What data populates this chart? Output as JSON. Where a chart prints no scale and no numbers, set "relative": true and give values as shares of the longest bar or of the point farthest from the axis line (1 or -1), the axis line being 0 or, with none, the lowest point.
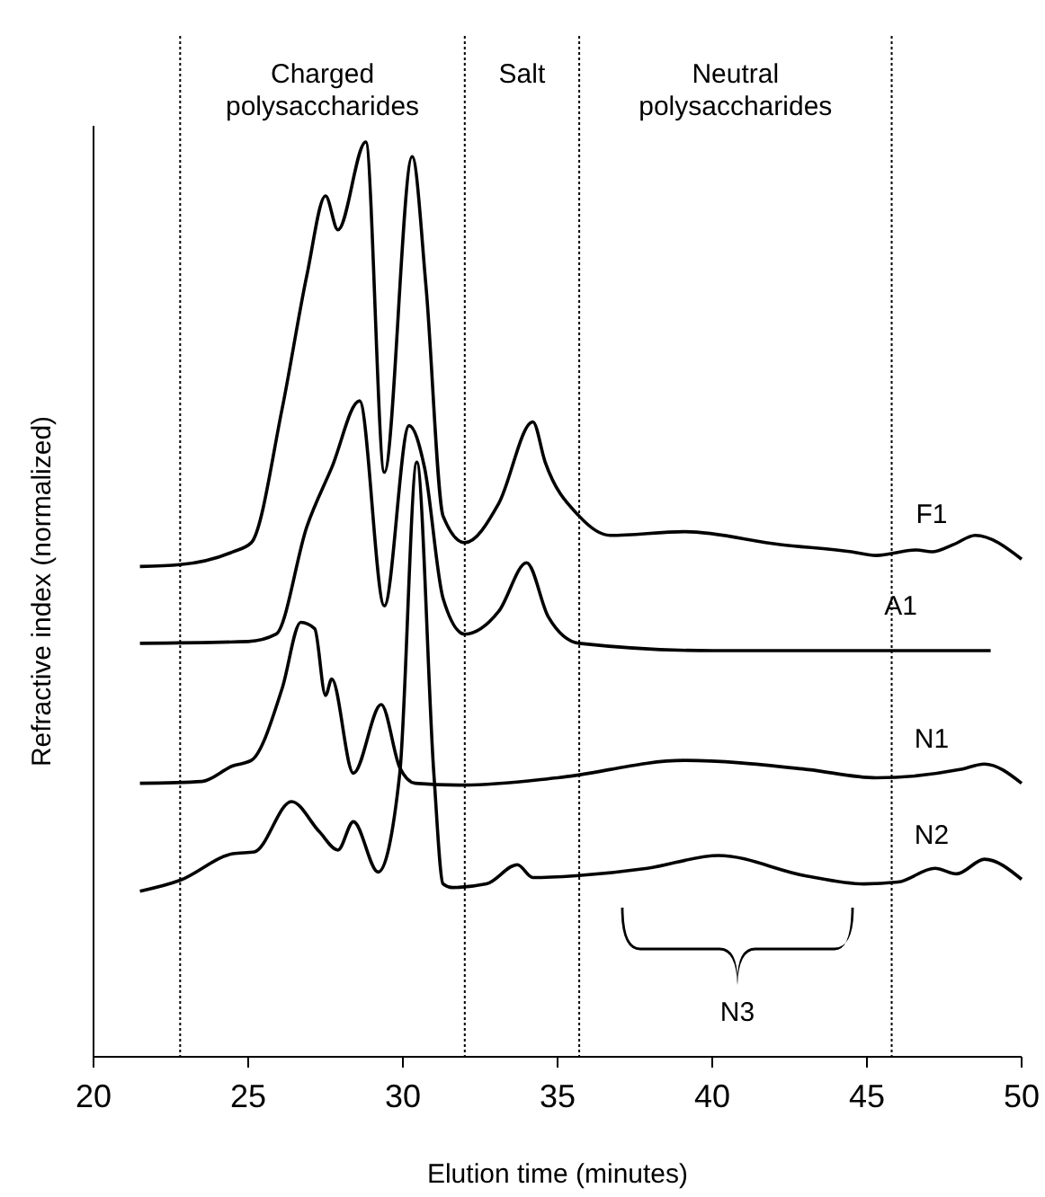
{
  "chart_data": {
    "type": "line",
    "relative": true,
    "xlabel": "Elution time (minutes)",
    "ylabel": "Refractive index (normalized)",
    "xlim": [
      20,
      50
    ],
    "xticks": [
      20,
      25,
      30,
      35,
      40,
      45,
      50
    ],
    "grid": false,
    "marker": "none",
    "line_style": "solid",
    "series": [
      {
        "name": "F1",
        "color": "#000000",
        "x": [
          21.5,
          22.8,
          24.5,
          25.1,
          26.1,
          26.9,
          27.5,
          27.9,
          28.8,
          29.4,
          30.3,
          30.75,
          31.3,
          32.0,
          33.1,
          34.2,
          34.6,
          35.7,
          36.7,
          39.1,
          42.2,
          44.5,
          45.3,
          46.6,
          47.1,
          47.8,
          48.5,
          50
        ],
        "values": [
          0.536,
          0.538,
          0.552,
          0.562,
          0.709,
          0.855,
          0.941,
          0.904,
          1.0,
          0.639,
          0.984,
          0.841,
          0.591,
          0.562,
          0.605,
          0.694,
          0.65,
          0.591,
          0.57,
          0.574,
          0.56,
          0.552,
          0.548,
          0.554,
          0.552,
          0.56,
          0.57,
          0.544
        ]
      },
      {
        "name": "A1",
        "color": "#000000",
        "x": [
          21.5,
          25.0,
          25.9,
          26.9,
          27.7,
          28.6,
          29.4,
          30.2,
          30.7,
          31.3,
          32.0,
          33.1,
          34.0,
          34.7,
          35.7,
          40,
          45,
          49
        ],
        "values": [
          0.452,
          0.454,
          0.462,
          0.58,
          0.644,
          0.717,
          0.493,
          0.69,
          0.644,
          0.501,
          0.462,
          0.487,
          0.54,
          0.481,
          0.452,
          0.444,
          0.444,
          0.444
        ]
      },
      {
        "name": "N1",
        "color": "#000000",
        "x": [
          21.5,
          23.5,
          24.5,
          25.1,
          26.1,
          26.7,
          27.15,
          27.5,
          27.7,
          28.4,
          29.3,
          29.9,
          30.4,
          32,
          35,
          39.1,
          43.1,
          45.3,
          48.0,
          48.8,
          50
        ],
        "values": [
          0.299,
          0.301,
          0.318,
          0.324,
          0.403,
          0.475,
          0.468,
          0.395,
          0.413,
          0.31,
          0.385,
          0.316,
          0.299,
          0.297,
          0.305,
          0.324,
          0.314,
          0.305,
          0.314,
          0.32,
          0.299
        ]
      },
      {
        "name": "N2",
        "color": "#000000",
        "x": [
          21.5,
          22.8,
          24.5,
          25.2,
          26.4,
          27.3,
          27.9,
          28.4,
          29.2,
          29.9,
          30.45,
          31.0,
          31.3,
          31.6,
          32.7,
          33.7,
          34.2,
          35.6,
          37.9,
          40.2,
          43.0,
          44.9,
          46.0,
          47.2,
          47.9,
          48.8,
          50
        ],
        "values": [
          0.181,
          0.193,
          0.222,
          0.224,
          0.279,
          0.246,
          0.226,
          0.257,
          0.202,
          0.31,
          0.65,
          0.31,
          0.189,
          0.185,
          0.189,
          0.21,
          0.196,
          0.198,
          0.206,
          0.22,
          0.198,
          0.189,
          0.191,
          0.206,
          0.2,
          0.216,
          0.194
        ]
      }
    ],
    "ref_lines": [
      {
        "axis": "x",
        "value": 22.8,
        "line_style": "dotted"
      },
      {
        "axis": "x",
        "value": 32.0,
        "line_style": "dotted"
      },
      {
        "axis": "x",
        "value": 35.7,
        "line_style": "dotted"
      },
      {
        "axis": "x",
        "value": 45.8,
        "line_style": "dotted"
      }
    ],
    "annotations": [
      "Charged\npolysaccharides",
      "Salt",
      "Neutral\npolysaccharides",
      "N3"
    ]
  }
}
